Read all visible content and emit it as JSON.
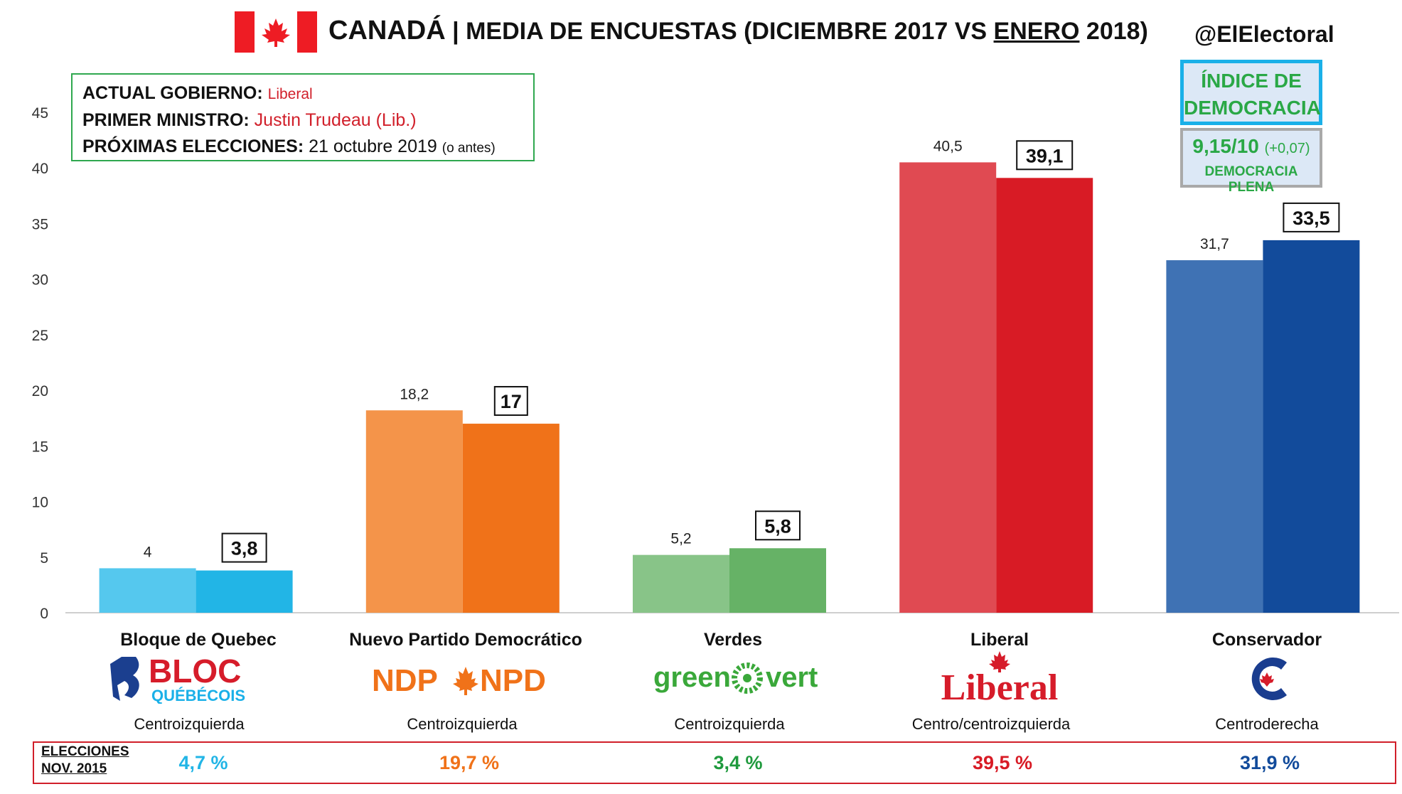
{
  "header": {
    "title_main": "CANADÁ",
    "title_sep": " | ",
    "title_sub1": "MEDIA DE ENCUESTAS",
    "title_open": " (DICIEMBRE 2017 VS ",
    "title_under": "ENERO",
    "title_close": " 2018)",
    "handle": "@ElElectoral"
  },
  "info": {
    "gov_key": "ACTUAL GOBIERNO: ",
    "gov_val": "Liberal",
    "pm_key": "PRIMER MINISTRO: ",
    "pm_val": "Justin Trudeau (Lib.)",
    "next_key": "PRÓXIMAS ELECCIONES: ",
    "next_val": "21 octubre 2019 ",
    "next_note": "(o antes)"
  },
  "democracy": {
    "title_l1": "ÍNDICE DE",
    "title_l2": "DEMOCRACIA",
    "score": "9,15/10",
    "delta": "(+0,07)",
    "category": "DEMOCRACIA PLENA"
  },
  "chart_data": {
    "type": "bar",
    "categories": [
      "Bloque de Quebec",
      "Nuevo Partido Democrático",
      "Verdes",
      "Liberal",
      "Conservador"
    ],
    "series": [
      {
        "values": [
          4,
          18.2,
          5.2,
          40.5,
          31.7
        ],
        "labels": [
          "4",
          "18,2",
          "5,2",
          "40,5",
          "31,7"
        ]
      },
      {
        "values": [
          3.8,
          17,
          5.8,
          39.1,
          33.5
        ],
        "labels": [
          "3,8",
          "17",
          "5,8",
          "39,1",
          "33,5"
        ]
      }
    ],
    "colors_dec": [
      "#55c8ee",
      "#f4944a",
      "#88c488",
      "#e04a52",
      "#3f72b4"
    ],
    "colors_jan": [
      "#22b5e6",
      "#f07219",
      "#66b266",
      "#d81b25",
      "#124b9b"
    ],
    "ylim": [
      0,
      45
    ],
    "yticks": [
      "0",
      "5",
      "10",
      "15",
      "20",
      "25",
      "30",
      "35",
      "40",
      "45"
    ],
    "grid": false
  },
  "parties": [
    {
      "name": "Bloque de Quebec",
      "ideology": "Centroizquierda",
      "result_2015": "4,7 %",
      "color": "#22b5e6",
      "logo": "BLOC QUÉBÉCOIS"
    },
    {
      "name": "Nuevo Partido Democrático",
      "ideology": "Centroizquierda",
      "result_2015": "19,7 %",
      "color": "#f07219",
      "logo": "NDP✦NPD"
    },
    {
      "name": "Verdes",
      "ideology": "Centroizquierda",
      "result_2015": "3,4 %",
      "color": "#1f9a3d",
      "logo": "green ✿ vert"
    },
    {
      "name": "Liberal",
      "ideology": "Centro/centroizquierda",
      "result_2015": "39,5 %",
      "color": "#d81b25",
      "logo": "Liberal"
    },
    {
      "name": "Conservador",
      "ideology": "Centroderecha",
      "result_2015": "31,9 %",
      "color": "#124b9b",
      "logo": "C"
    }
  ],
  "elections": {
    "label_l1": "ELECCIONES",
    "label_l2": "NOV. 2015"
  }
}
